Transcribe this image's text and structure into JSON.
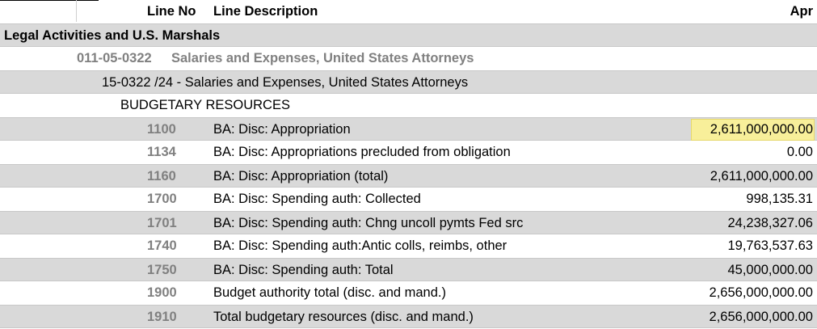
{
  "header": {
    "line_no": "Line No",
    "line_description": "Line Description",
    "period": "Apr"
  },
  "bureau": "Legal Activities and U.S. Marshals",
  "account": {
    "code": "011-05-0322",
    "name": "Salaries and Expenses, United States Attorneys"
  },
  "tafs": {
    "label": "15-0322 /24 - Salaries and Expenses, United States Attorneys"
  },
  "section": "BUDGETARY RESOURCES",
  "rows": [
    {
      "line_no": "1100",
      "description": "BA: Disc: Appropriation",
      "amount": "2,611,000,000.00"
    },
    {
      "line_no": "1134",
      "description": "BA: Disc: Appropriations precluded from obligation",
      "amount": "0.00"
    },
    {
      "line_no": "1160",
      "description": "BA: Disc: Appropriation (total)",
      "amount": "2,611,000,000.00"
    },
    {
      "line_no": "1700",
      "description": "BA: Disc: Spending auth: Collected",
      "amount": "998,135.31"
    },
    {
      "line_no": "1701",
      "description": "BA: Disc: Spending auth: Chng uncoll pymts Fed src",
      "amount": "24,238,327.06"
    },
    {
      "line_no": "1740",
      "description": "BA: Disc: Spending auth:Antic colls, reimbs, other",
      "amount": "19,763,537.63"
    },
    {
      "line_no": "1750",
      "description": "BA: Disc: Spending auth: Total",
      "amount": "45,000,000.00"
    },
    {
      "line_no": "1900",
      "description": "Budget authority total (disc. and mand.)",
      "amount": "2,656,000,000.00"
    },
    {
      "line_no": "1910",
      "description": "Total budgetary resources (disc. and mand.)",
      "amount": "2,656,000,000.00"
    }
  ],
  "colors": {
    "row_shade": "#d9d9d9",
    "highlight": "#f8ef9a",
    "line_no_text": "#808080"
  }
}
